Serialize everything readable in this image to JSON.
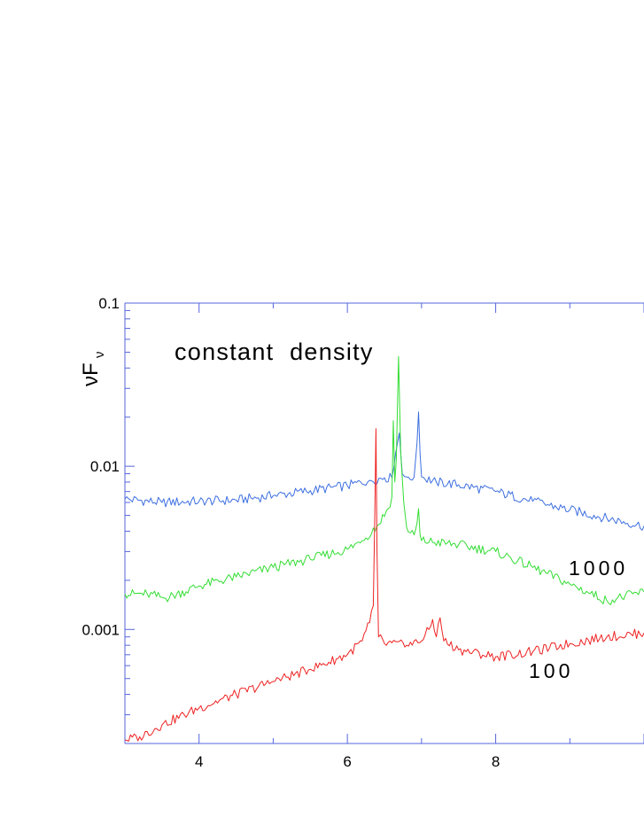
{
  "chart_data": {
    "type": "line",
    "title": "",
    "xlabel": "",
    "ylabel": "νF_ν",
    "ylabel_main": "νF",
    "ylabel_sub": "ν",
    "xscale": "linear",
    "yscale": "log",
    "xlim": [
      3,
      10
    ],
    "ylim": [
      0.0002,
      0.1
    ],
    "x_ticks": [
      4,
      6,
      8
    ],
    "x_tick_labels": [
      "4",
      "6",
      "8"
    ],
    "y_ticks": [
      0.1,
      0.01,
      0.001
    ],
    "y_tick_labels": [
      "0.1",
      "0.01",
      "0.001"
    ],
    "grid": false,
    "annotations": [
      "constant  density",
      "1000",
      "100"
    ],
    "series": [
      {
        "color": "#3d6fe0",
        "points": [
          [
            3.0,
            0.0063
          ],
          [
            3.5,
            0.006
          ],
          [
            4.0,
            0.0061
          ],
          [
            4.5,
            0.0062
          ],
          [
            5.0,
            0.0066
          ],
          [
            5.5,
            0.0071
          ],
          [
            6.0,
            0.0076
          ],
          [
            6.3,
            0.0082
          ],
          [
            6.5,
            0.0085
          ],
          [
            6.6,
            0.0085
          ],
          [
            6.65,
            0.012
          ],
          [
            6.7,
            0.016
          ],
          [
            6.74,
            0.009
          ],
          [
            6.8,
            0.0086
          ],
          [
            6.9,
            0.0086
          ],
          [
            6.94,
            0.014
          ],
          [
            6.96,
            0.0215
          ],
          [
            6.98,
            0.012
          ],
          [
            7.0,
            0.0086
          ],
          [
            7.2,
            0.008
          ],
          [
            7.5,
            0.0077
          ],
          [
            8.0,
            0.007
          ],
          [
            8.5,
            0.0061
          ],
          [
            9.0,
            0.0054
          ],
          [
            9.5,
            0.0048
          ],
          [
            10.0,
            0.0043
          ]
        ]
      },
      {
        "color": "#33dd33",
        "points": [
          [
            3.0,
            0.00165
          ],
          [
            3.3,
            0.00165
          ],
          [
            3.55,
            0.00155
          ],
          [
            4.0,
            0.00185
          ],
          [
            4.5,
            0.0021
          ],
          [
            5.0,
            0.0024
          ],
          [
            5.5,
            0.0027
          ],
          [
            6.0,
            0.0031
          ],
          [
            6.2,
            0.0035
          ],
          [
            6.4,
            0.0043
          ],
          [
            6.55,
            0.0055
          ],
          [
            6.6,
            0.0065
          ],
          [
            6.62,
            0.019
          ],
          [
            6.64,
            0.008
          ],
          [
            6.66,
            0.011
          ],
          [
            6.69,
            0.047
          ],
          [
            6.72,
            0.012
          ],
          [
            6.76,
            0.006
          ],
          [
            6.8,
            0.0042
          ],
          [
            6.9,
            0.0038
          ],
          [
            6.94,
            0.0045
          ],
          [
            6.96,
            0.0055
          ],
          [
            6.98,
            0.0038
          ],
          [
            7.0,
            0.0035
          ],
          [
            7.5,
            0.0033
          ],
          [
            8.0,
            0.003
          ],
          [
            8.5,
            0.0024
          ],
          [
            9.0,
            0.0019
          ],
          [
            9.5,
            0.0015
          ],
          [
            10.0,
            0.0017
          ]
        ]
      },
      {
        "color": "#ee2222",
        "points": [
          [
            3.0,
            0.00021
          ],
          [
            3.2,
            0.00022
          ],
          [
            3.5,
            0.00026
          ],
          [
            4.0,
            0.00033
          ],
          [
            4.5,
            0.0004
          ],
          [
            5.0,
            0.00048
          ],
          [
            5.5,
            0.00057
          ],
          [
            6.0,
            0.0007
          ],
          [
            6.2,
            0.00085
          ],
          [
            6.3,
            0.0011
          ],
          [
            6.35,
            0.0014
          ],
          [
            6.37,
            0.005
          ],
          [
            6.385,
            0.017
          ],
          [
            6.4,
            0.003
          ],
          [
            6.42,
            0.0009
          ],
          [
            6.5,
            0.00082
          ],
          [
            6.8,
            0.0008
          ],
          [
            7.0,
            0.00085
          ],
          [
            7.1,
            0.001
          ],
          [
            7.15,
            0.00115
          ],
          [
            7.2,
            0.0009
          ],
          [
            7.25,
            0.00118
          ],
          [
            7.3,
            0.00085
          ],
          [
            7.5,
            0.00075
          ],
          [
            8.0,
            0.00068
          ],
          [
            8.5,
            0.00073
          ],
          [
            9.0,
            0.00082
          ],
          [
            9.5,
            0.0009
          ],
          [
            10.0,
            0.00095
          ]
        ]
      }
    ]
  }
}
